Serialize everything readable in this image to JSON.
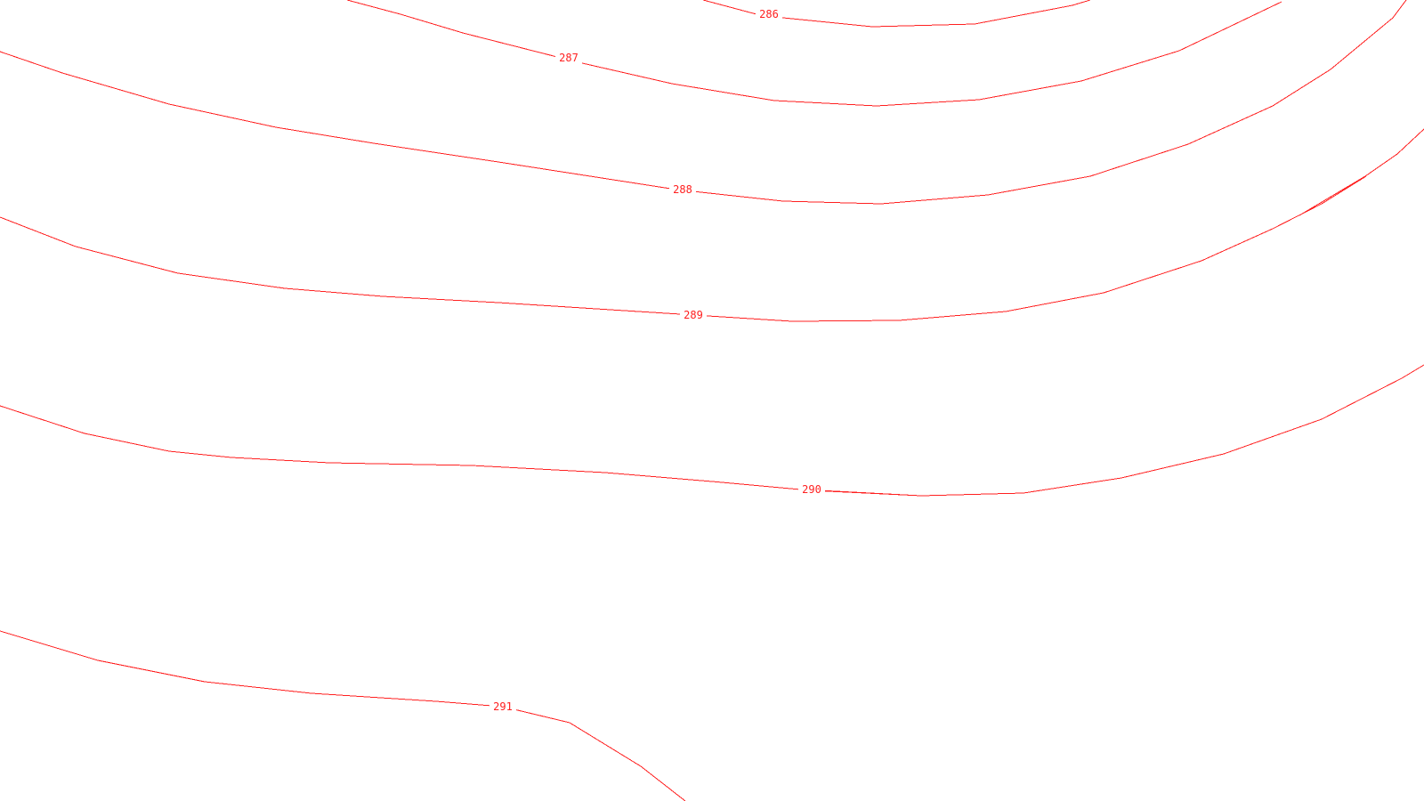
{
  "map": {
    "line_color": "#ff2020",
    "background": "#ffffff",
    "contours": [
      {
        "elevation": "286"
      },
      {
        "elevation": "287"
      },
      {
        "elevation": "288"
      },
      {
        "elevation": ""
      },
      {
        "elevation": "289"
      },
      {
        "elevation": ""
      },
      {
        "elevation": "290"
      },
      {
        "elevation": "291"
      }
    ]
  }
}
